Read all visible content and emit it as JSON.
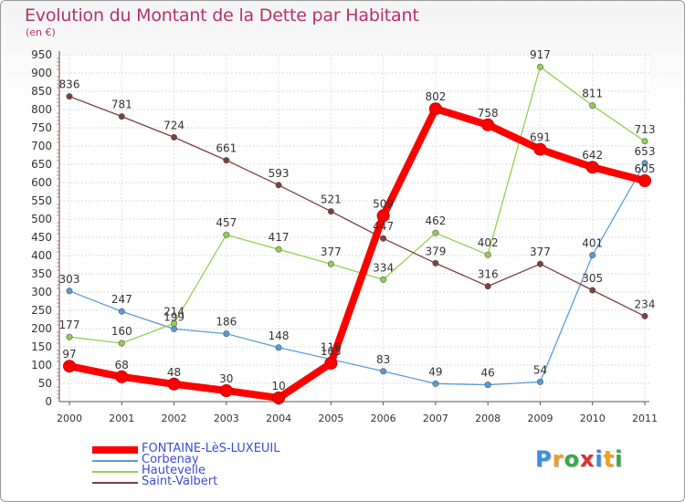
{
  "title": "Evolution du Montant de la Dette par Habitant",
  "subtitle": "(en €)",
  "logo": {
    "text": "Proxiti",
    "letters": [
      {
        "ch": "P",
        "color": "#3b8de0"
      },
      {
        "ch": "r",
        "color": "#f0a020"
      },
      {
        "ch": "o",
        "color": "#3aa84a"
      },
      {
        "ch": "x",
        "color": "#e03030"
      },
      {
        "ch": "i",
        "color": "#3b8de0"
      },
      {
        "ch": "t",
        "color": "#f0a020"
      },
      {
        "ch": "i",
        "color": "#3aa84a"
      }
    ]
  },
  "chart_data": {
    "type": "line",
    "title": "Evolution du Montant de la Dette par Habitant",
    "subtitle": "(en €)",
    "xlabel": "",
    "ylabel": "",
    "x": [
      "2000",
      "2001",
      "2002",
      "2003",
      "2004",
      "2005",
      "2006",
      "2007",
      "2008",
      "2009",
      "2010",
      "2011"
    ],
    "ylim": [
      0,
      950
    ],
    "yticks": [
      0,
      50,
      100,
      150,
      200,
      250,
      300,
      350,
      400,
      450,
      500,
      550,
      600,
      650,
      700,
      750,
      800,
      850,
      900,
      950
    ],
    "grid": true,
    "legend_position": "bottom-left",
    "series": [
      {
        "name": "FONTAINE-LèS-LUXEUIL",
        "color": "#ff0000",
        "values": [
          97,
          68,
          48,
          30,
          10,
          105,
          509,
          802,
          758,
          691,
          642,
          605
        ]
      },
      {
        "name": "Corbenay",
        "color": "#5b9bd5",
        "values": [
          303,
          247,
          199,
          186,
          148,
          116,
          83,
          49,
          46,
          54,
          401,
          653
        ]
      },
      {
        "name": "Hautevelle",
        "color": "#92d050",
        "values": [
          177,
          160,
          214,
          457,
          417,
          377,
          334,
          462,
          402,
          917,
          811,
          713
        ]
      },
      {
        "name": "Saint-Valbert",
        "color": "#7f3f3f",
        "values": [
          836,
          781,
          724,
          661,
          593,
          521,
          447,
          379,
          316,
          377,
          305,
          234
        ]
      }
    ]
  }
}
